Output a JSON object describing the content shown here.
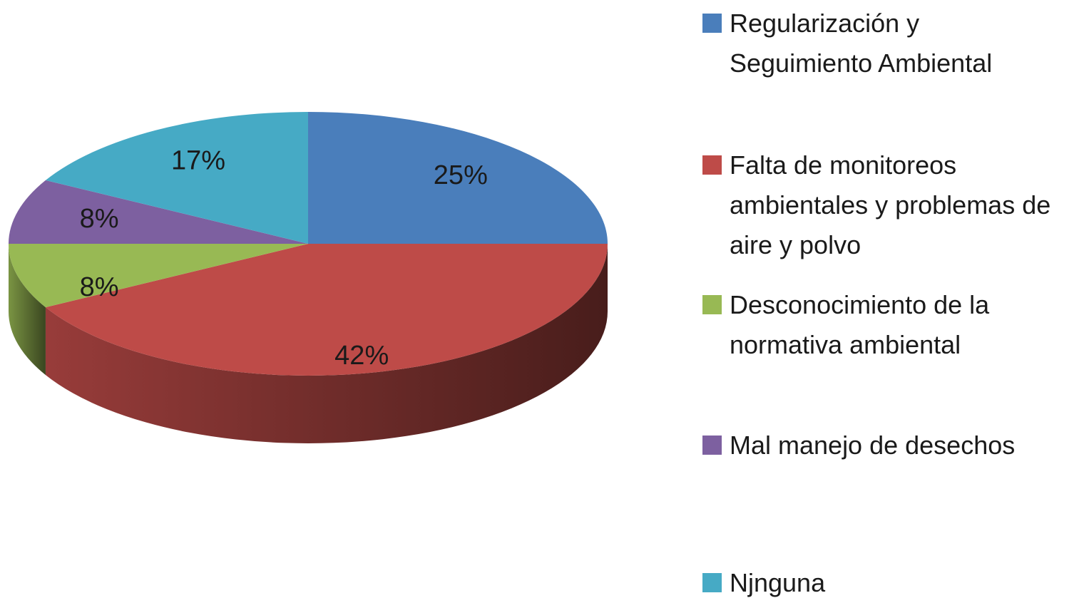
{
  "chart_data": {
    "type": "pie",
    "categories": [
      "Regularización y Seguimiento Ambiental",
      "Falta de monitoreos ambientales y problemas de aire y polvo",
      "Desconocimiento de la normativa ambiental",
      "Mal manejo de desechos",
      "Njnguna"
    ],
    "values": [
      25,
      42,
      8,
      8,
      17
    ],
    "value_labels": [
      "25%",
      "42%",
      "8%",
      "8%",
      "17%"
    ],
    "colors": [
      "#4a7ebb",
      "#be4b48",
      "#98b954",
      "#7d60a0",
      "#46aac5"
    ],
    "legend": "right"
  }
}
